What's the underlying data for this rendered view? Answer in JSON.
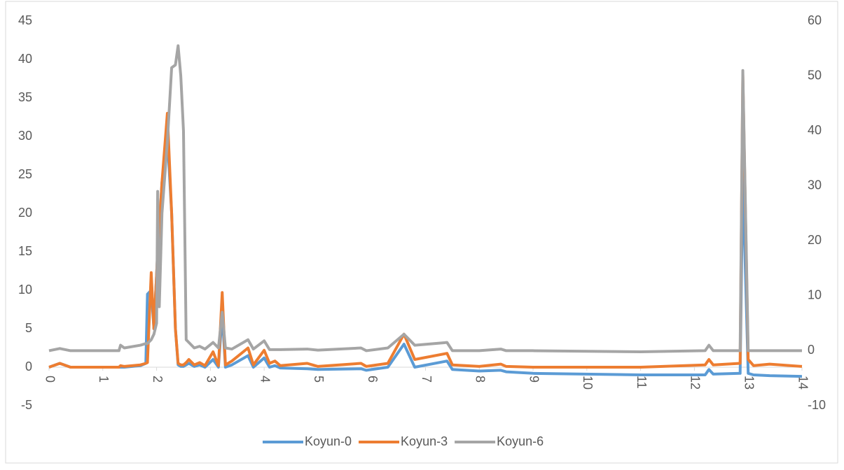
{
  "chart_data": {
    "type": "line",
    "x": [
      0,
      0.2,
      0.4,
      1.3,
      1.33,
      1.4,
      1.7,
      1.8,
      1.83,
      1.9,
      1.95,
      2.0,
      2.02,
      2.05,
      2.1,
      2.2,
      2.28,
      2.35,
      2.4,
      2.45,
      2.5,
      2.55,
      2.6,
      2.7,
      2.8,
      2.9,
      3.05,
      3.15,
      3.22,
      3.28,
      3.4,
      3.7,
      3.8,
      4.0,
      4.1,
      4.2,
      4.3,
      4.8,
      5.0,
      5.8,
      5.9,
      6.3,
      6.6,
      6.8,
      7.4,
      7.5,
      8.0,
      8.4,
      8.5,
      9.0,
      11.0,
      12.2,
      12.27,
      12.35,
      12.85,
      12.9,
      13.0,
      13.1,
      13.4,
      14.0
    ],
    "series": [
      {
        "name": "Koyun-0",
        "color": "#5b9bd5",
        "values": [
          0,
          0.5,
          0,
          0,
          0,
          0,
          0.2,
          0.5,
          9.5,
          10,
          5,
          12,
          15,
          18,
          24,
          30,
          20,
          5,
          0.3,
          0.1,
          0.1,
          0.3,
          0.5,
          0.1,
          0.3,
          0,
          1,
          0,
          7,
          0,
          0.3,
          1.5,
          0,
          1.2,
          0,
          0.2,
          -0.1,
          -0.2,
          -0.3,
          -0.2,
          -0.4,
          0,
          3,
          0,
          0.8,
          -0.3,
          -0.5,
          -0.4,
          -0.6,
          -0.8,
          -1,
          -1,
          -0.3,
          -0.9,
          -0.8,
          25,
          -0.8,
          -1,
          -1.1,
          -1.2
        ]
      },
      {
        "name": "Koyun-3",
        "color": "#ed7d31",
        "values": [
          0,
          0.5,
          0,
          0,
          0.2,
          0.1,
          0.3,
          0.5,
          0.6,
          12.3,
          5,
          12,
          15,
          18,
          24,
          33,
          20,
          5,
          0.5,
          0.3,
          0.3,
          0.6,
          1,
          0.3,
          0.6,
          0.2,
          2,
          0.2,
          9.7,
          0.3,
          0.8,
          2.5,
          0.3,
          2.2,
          0.5,
          0.8,
          0.2,
          0.5,
          0.1,
          0.5,
          0.1,
          0.5,
          4.3,
          1,
          1.8,
          0.3,
          0.1,
          0.4,
          0.1,
          0,
          0,
          0.3,
          1,
          0.3,
          0.5,
          38,
          1,
          0.2,
          0.4,
          0.1
        ]
      },
      {
        "name": "Koyun-6",
        "color": "#a5a5a5",
        "axis": "y2",
        "values": [
          0,
          0.4,
          0,
          0,
          1,
          0.5,
          1,
          1.3,
          1.3,
          2,
          3,
          5,
          29,
          8,
          25,
          38,
          51.5,
          52,
          55.5,
          50,
          40,
          2,
          1.5,
          0.5,
          0.8,
          0.3,
          1.5,
          0.5,
          7,
          0.5,
          0.3,
          2,
          0.3,
          1.8,
          0.2,
          0.2,
          0.2,
          0.3,
          0.1,
          0.5,
          0,
          0.5,
          3,
          1,
          1.5,
          0,
          0,
          0.3,
          0,
          0,
          -0.2,
          0,
          1,
          0,
          0,
          51,
          0,
          0,
          0,
          0
        ]
      }
    ],
    "xlim": [
      0,
      14
    ],
    "xticks": [
      0,
      1,
      2,
      3,
      4,
      5,
      6,
      7,
      8,
      9,
      10,
      11,
      12,
      13,
      14
    ],
    "ylim": [
      -5,
      45
    ],
    "yticks": [
      -5,
      0,
      5,
      10,
      15,
      20,
      25,
      30,
      35,
      40,
      45
    ],
    "y2lim": [
      -10,
      60
    ],
    "y2ticks": [
      -10,
      0,
      10,
      20,
      30,
      40,
      50,
      60
    ],
    "grid": false,
    "legend": "bottom"
  }
}
